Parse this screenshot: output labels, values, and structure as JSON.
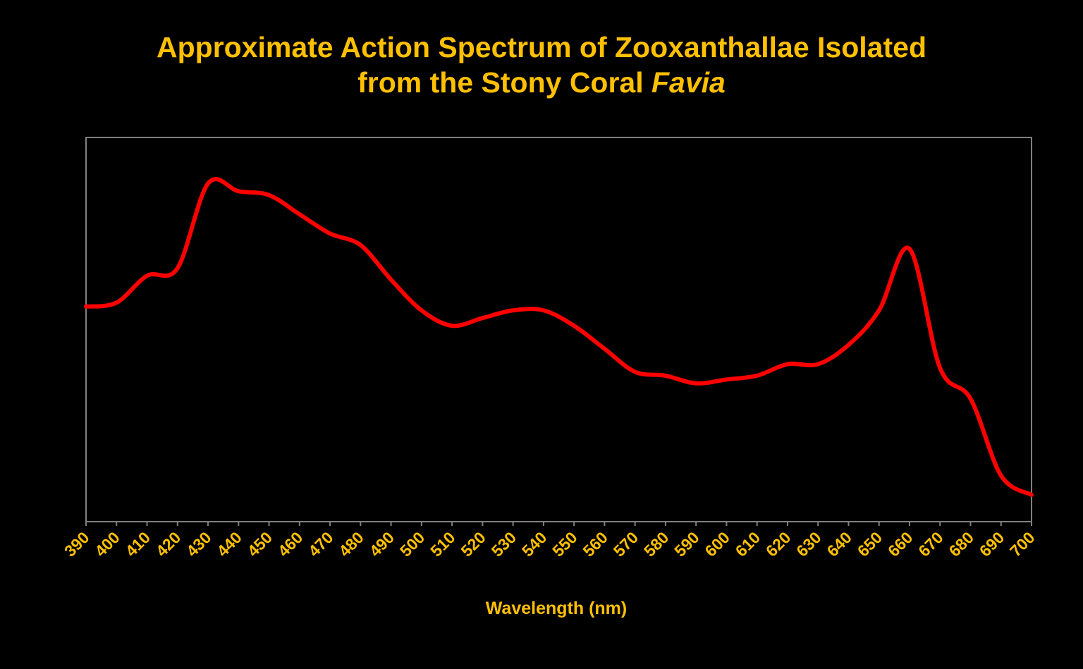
{
  "colors": {
    "background": "#000000",
    "text": "#FFC000",
    "series": "#FF0000",
    "plot_border": "#808080"
  },
  "header": {
    "title_line1": "Approximate Action Spectrum of Zooxanthallae Isolated",
    "title_line2_prefix": "from the Stony Coral ",
    "title_line2_italic": "Favia"
  },
  "chart_data": {
    "type": "line",
    "title": "Approximate Action Spectrum of Zooxanthallae Isolated from the Stony Coral Favia",
    "xlabel": "Wavelength (nm)",
    "ylabel": "",
    "xlim": [
      390,
      700
    ],
    "ylim": [
      0,
      1
    ],
    "y_axis_labels_shown": false,
    "grid": false,
    "legend": "none",
    "smooth": true,
    "x_ticks": [
      390,
      400,
      410,
      420,
      430,
      440,
      450,
      460,
      470,
      480,
      490,
      500,
      510,
      520,
      530,
      540,
      550,
      560,
      570,
      580,
      590,
      600,
      610,
      620,
      630,
      640,
      650,
      660,
      670,
      680,
      690,
      700
    ],
    "series": [
      {
        "x": [
          390,
          400,
          410,
          420,
          430,
          440,
          450,
          460,
          470,
          480,
          490,
          500,
          510,
          520,
          530,
          540,
          550,
          560,
          570,
          580,
          590,
          600,
          610,
          620,
          630,
          640,
          650,
          660,
          670,
          680,
          690,
          700
        ],
        "y": [
          0.56,
          0.57,
          0.64,
          0.66,
          0.88,
          0.86,
          0.85,
          0.8,
          0.75,
          0.72,
          0.63,
          0.55,
          0.51,
          0.53,
          0.55,
          0.55,
          0.51,
          0.45,
          0.39,
          0.38,
          0.36,
          0.37,
          0.38,
          0.41,
          0.41,
          0.46,
          0.55,
          0.71,
          0.4,
          0.32,
          0.12,
          0.07
        ]
      }
    ]
  }
}
